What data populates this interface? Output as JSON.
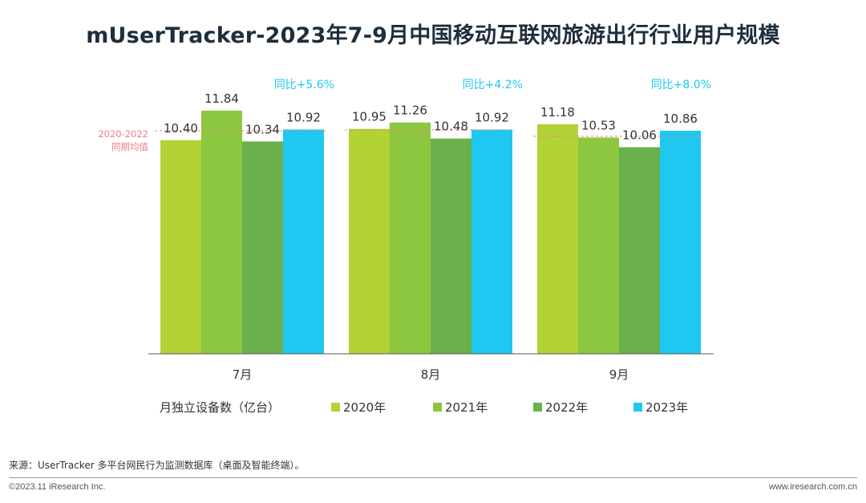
{
  "title": "mUserTracker-2023年7-9月中国移动互联网旅游出行行业用户规模",
  "chart_data": {
    "type": "bar",
    "categories": [
      "7月",
      "8月",
      "9月"
    ],
    "series": [
      {
        "name": "2020年",
        "values": [
          10.4,
          10.95,
          11.18
        ],
        "color": "#b2d235"
      },
      {
        "name": "2021年",
        "values": [
          11.84,
          11.26,
          10.53
        ],
        "color": "#8dc63f"
      },
      {
        "name": "2022年",
        "values": [
          10.34,
          10.48,
          10.06
        ],
        "color": "#6ab04c"
      },
      {
        "name": "2023年",
        "values": [
          10.92,
          10.92,
          10.86
        ],
        "color": "#1ec8f0"
      }
    ],
    "yoy_labels": [
      "同比+5.6%",
      "同比+4.2%",
      "同比+8.0%"
    ],
    "avg_2020_2022": [
      10.86,
      10.9,
      10.59
    ],
    "avg_label": [
      "2020-2022",
      "同期均值"
    ],
    "ylabel": "月独立设备数（亿台）",
    "legend_position": "bottom",
    "grid": false,
    "ylim": [
      0,
      12
    ]
  },
  "colors": {
    "yoy": "#1ec8f0",
    "avg_line": "#f08080",
    "axis": "#555555",
    "title": "#1f2e3d"
  },
  "source": "来源：UserTracker 多平台网民行为监测数据库（桌面及智能终端）。",
  "copyright": "©2023.11 iResearch Inc.",
  "website": "www.iresearch.com.cn"
}
